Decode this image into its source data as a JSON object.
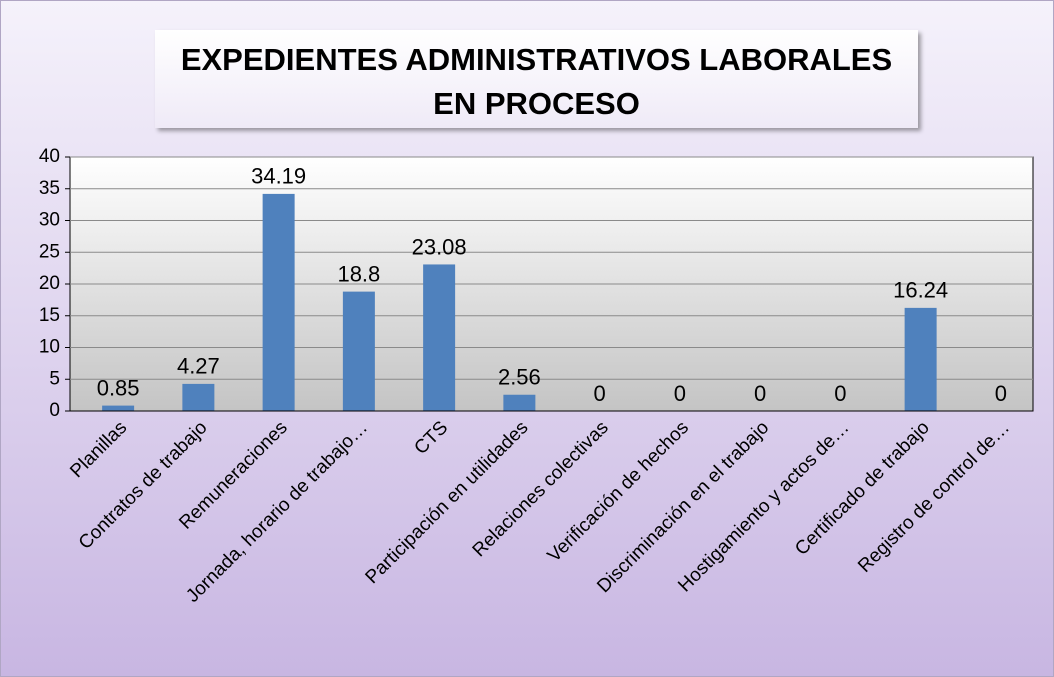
{
  "chart_data": {
    "type": "bar",
    "title": "EXPEDIENTES ADMINISTRATIVOS LABORALES EN PROCESO",
    "categories": [
      "Planillas",
      "Contratos de trabajo",
      "Remuneraciones",
      "Jornada, horario de trabajo…",
      "CTS",
      "Participación en utilidades",
      "Relaciones colectivas",
      "Verificación de hechos",
      "Discriminación en el trabajo",
      "Hostigamiento y actos de…",
      "Certificado de trabajo",
      "Registro de control de…"
    ],
    "values": [
      0.85,
      4.27,
      34.19,
      18.8,
      23.08,
      2.56,
      0,
      0,
      0,
      0,
      16.24,
      0
    ],
    "color": "#4f81bd",
    "ylim": [
      0,
      40
    ],
    "yticks": [
      0,
      5,
      10,
      15,
      20,
      25,
      30,
      35,
      40
    ],
    "grid": true
  }
}
